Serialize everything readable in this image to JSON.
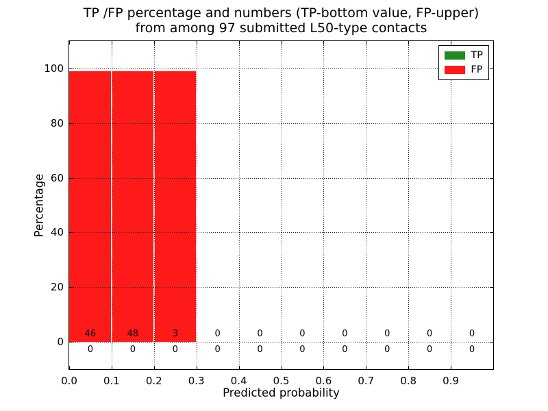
{
  "chart_data": {
    "type": "bar",
    "title_line1": "TP /FP percentage and numbers (TP-bottom value, FP-upper)",
    "title_line2": "from among 97 submitted L50-type contacts",
    "xlabel": "Predicted probability",
    "ylabel": "Percentage",
    "xlim": [
      0,
      1
    ],
    "ylim": [
      -10,
      110
    ],
    "x_ticks": [
      0,
      0.1,
      0.2,
      0.3,
      0.4,
      0.5,
      0.6,
      0.7,
      0.8,
      0.9
    ],
    "x_tick_labels": [
      "0.0",
      "0.1",
      "0.2",
      "0.3",
      "0.4",
      "0.5",
      "0.6",
      "0.7",
      "0.8",
      "0.9"
    ],
    "y_ticks": [
      0,
      20,
      40,
      60,
      80,
      100
    ],
    "y_tick_labels": [
      "0",
      "20",
      "40",
      "60",
      "80",
      "100"
    ],
    "grid": "dotted",
    "grid_color": "#1b1b1b",
    "legend_position": "upper-right",
    "bin_width": 0.1,
    "bin_starts": [
      0,
      0.1,
      0.2,
      0.3,
      0.4,
      0.5,
      0.6,
      0.7,
      0.8,
      0.9
    ],
    "series": [
      {
        "name": "TP",
        "color": "#228b22",
        "percent": [
          0,
          0,
          0,
          0,
          0,
          0,
          0,
          0,
          0,
          0
        ],
        "counts": [
          0,
          0,
          0,
          0,
          0,
          0,
          0,
          0,
          0,
          0
        ]
      },
      {
        "name": "FP",
        "color": "#ff1a1a",
        "percent": [
          100,
          100,
          100,
          0,
          0,
          0,
          0,
          0,
          0,
          0
        ],
        "counts": [
          46,
          48,
          3,
          0,
          0,
          0,
          0,
          0,
          0,
          0
        ]
      }
    ]
  }
}
